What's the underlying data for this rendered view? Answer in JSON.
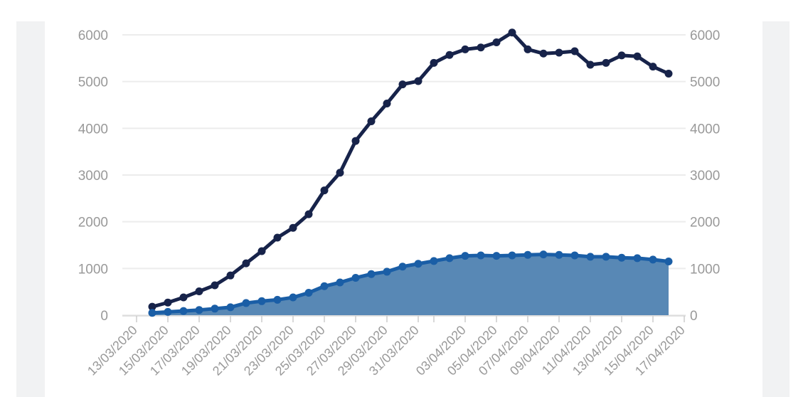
{
  "chart_data": {
    "type": "line",
    "title": "",
    "xlabel": "",
    "ylabel": "",
    "ylim": [
      0,
      6000
    ],
    "y_ticks": [
      0,
      1000,
      2000,
      3000,
      4000,
      5000,
      6000
    ],
    "x_tick_labels": [
      "13/03/2020",
      "15/03/2020",
      "17/03/2020",
      "19/03/2020",
      "21/03/2020",
      "23/03/2020",
      "25/03/2020",
      "27/03/2020",
      "29/03/2020",
      "31/03/2020",
      "03/04/2020",
      "05/04/2020",
      "07/04/2020",
      "09/04/2020",
      "11/04/2020",
      "13/04/2020",
      "15/04/2020",
      "17/04/2020"
    ],
    "grid": "horizontal",
    "legend": "none",
    "x": [
      "14/03/2020",
      "15/03/2020",
      "16/03/2020",
      "17/03/2020",
      "18/03/2020",
      "19/03/2020",
      "20/03/2020",
      "21/03/2020",
      "22/03/2020",
      "23/03/2020",
      "24/03/2020",
      "25/03/2020",
      "26/03/2020",
      "27/03/2020",
      "28/03/2020",
      "29/03/2020",
      "30/03/2020",
      "31/03/2020",
      "01/04/2020",
      "02/04/2020",
      "03/04/2020",
      "04/04/2020",
      "05/04/2020",
      "06/04/2020",
      "07/04/2020",
      "08/04/2020",
      "09/04/2020",
      "10/04/2020",
      "11/04/2020",
      "12/04/2020",
      "13/04/2020",
      "14/04/2020",
      "15/04/2020",
      "16/04/2020"
    ],
    "series": [
      {
        "style": "line",
        "color": "#17234a",
        "values": [
          180,
          270,
          380,
          510,
          640,
          850,
          1110,
          1370,
          1660,
          1870,
          2160,
          2670,
          3050,
          3730,
          4150,
          4530,
          4940,
          5010,
          5400,
          5570,
          5690,
          5730,
          5840,
          6050,
          5690,
          5600,
          5620,
          5650,
          5360,
          5400,
          5560,
          5540,
          5320,
          5170
        ]
      },
      {
        "style": "area",
        "color": "#1a5ea6",
        "fill": "#5888b5",
        "values": [
          50,
          70,
          90,
          110,
          140,
          170,
          260,
          300,
          330,
          380,
          480,
          620,
          700,
          800,
          880,
          930,
          1040,
          1100,
          1160,
          1220,
          1270,
          1280,
          1270,
          1280,
          1290,
          1300,
          1290,
          1280,
          1250,
          1250,
          1230,
          1220,
          1190,
          1150
        ]
      }
    ]
  }
}
